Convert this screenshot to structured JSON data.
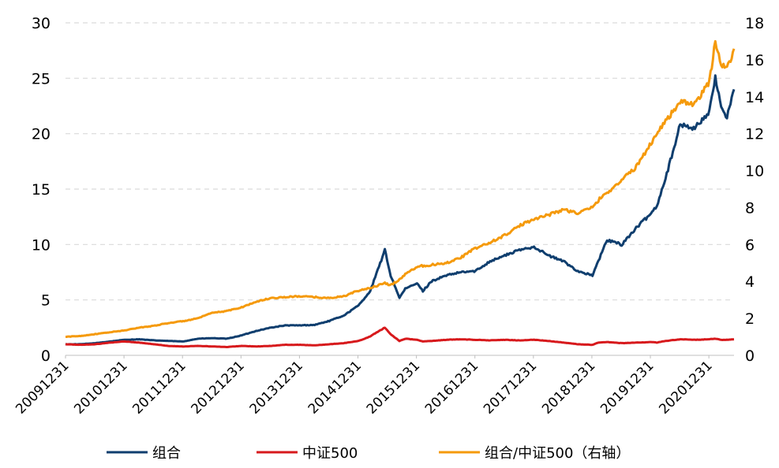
{
  "chart_data": {
    "type": "line",
    "title": "",
    "xlabel": "",
    "ylabel": "",
    "x_tick_labels": [
      "20091231",
      "20101231",
      "20111231",
      "20121231",
      "20131231",
      "20141231",
      "20151231",
      "20161231",
      "20171231",
      "20181231",
      "20191231",
      "20201231"
    ],
    "y_left": {
      "ylim": [
        0,
        30
      ],
      "ticks": [
        "0",
        "5",
        "10",
        "15",
        "20",
        "25",
        "30"
      ]
    },
    "y_right": {
      "ylim": [
        0,
        18
      ],
      "ticks": [
        "0",
        "2",
        "4",
        "6",
        "8",
        "10",
        "12",
        "14",
        "16",
        "18"
      ]
    },
    "grid": "horizontal-dashed",
    "legend_position": "bottom",
    "x_anchor_years": [
      2009.99,
      2010.25,
      2010.5,
      2010.75,
      2011.0,
      2011.25,
      2011.5,
      2011.75,
      2012.0,
      2012.25,
      2012.5,
      2012.75,
      2013.0,
      2013.25,
      2013.5,
      2013.75,
      2014.0,
      2014.25,
      2014.5,
      2014.75,
      2015.0,
      2015.2,
      2015.35,
      2015.45,
      2015.55,
      2015.7,
      2015.8,
      2016.0,
      2016.1,
      2016.25,
      2016.5,
      2016.75,
      2017.0,
      2017.25,
      2017.5,
      2017.75,
      2018.0,
      2018.25,
      2018.5,
      2018.75,
      2019.0,
      2019.1,
      2019.25,
      2019.5,
      2019.75,
      2020.0,
      2020.1,
      2020.25,
      2020.5,
      2020.75,
      2021.0,
      2021.1,
      2021.2,
      2021.3,
      2021.42
    ],
    "series": [
      {
        "name": "组合",
        "color": "#0f3e6e",
        "axis": "left",
        "values": [
          1.0,
          1.0,
          1.1,
          1.25,
          1.4,
          1.45,
          1.35,
          1.3,
          1.25,
          1.5,
          1.55,
          1.5,
          1.8,
          2.2,
          2.5,
          2.7,
          2.7,
          2.75,
          3.1,
          3.6,
          4.5,
          5.8,
          8.0,
          9.5,
          7.2,
          5.2,
          6.0,
          6.5,
          5.8,
          6.7,
          7.2,
          7.5,
          7.6,
          8.5,
          9.0,
          9.5,
          9.8,
          9.0,
          8.5,
          7.6,
          7.2,
          8.5,
          10.4,
          10.0,
          11.5,
          12.8,
          13.5,
          16.0,
          20.8,
          20.5,
          22.0,
          25.0,
          22.5,
          21.5,
          24.0
        ]
      },
      {
        "name": "中证500",
        "color": "#d7191c",
        "axis": "left",
        "values": [
          1.0,
          0.95,
          1.0,
          1.15,
          1.25,
          1.15,
          1.0,
          0.85,
          0.8,
          0.85,
          0.8,
          0.75,
          0.85,
          0.8,
          0.85,
          0.95,
          0.95,
          0.9,
          1.0,
          1.1,
          1.3,
          1.7,
          2.2,
          2.5,
          1.9,
          1.3,
          1.5,
          1.4,
          1.25,
          1.3,
          1.4,
          1.45,
          1.4,
          1.35,
          1.4,
          1.35,
          1.4,
          1.3,
          1.15,
          1.0,
          0.95,
          1.15,
          1.2,
          1.1,
          1.15,
          1.2,
          1.15,
          1.3,
          1.45,
          1.4,
          1.45,
          1.5,
          1.4,
          1.4,
          1.45
        ]
      },
      {
        "name": "组合/中证500（右轴）",
        "color": "#f59a0c",
        "axis": "right",
        "values": [
          1.0,
          1.05,
          1.15,
          1.25,
          1.35,
          1.5,
          1.6,
          1.75,
          1.85,
          2.0,
          2.3,
          2.4,
          2.6,
          2.9,
          3.1,
          3.15,
          3.2,
          3.15,
          3.1,
          3.2,
          3.5,
          3.65,
          3.8,
          3.9,
          3.8,
          4.1,
          4.4,
          4.8,
          4.85,
          4.9,
          5.0,
          5.3,
          5.8,
          6.1,
          6.5,
          7.0,
          7.4,
          7.6,
          7.9,
          7.7,
          8.0,
          8.4,
          8.8,
          9.5,
          10.2,
          11.5,
          12.0,
          12.7,
          13.7,
          13.6,
          14.8,
          17.0,
          15.8,
          15.5,
          16.6
        ]
      }
    ]
  }
}
